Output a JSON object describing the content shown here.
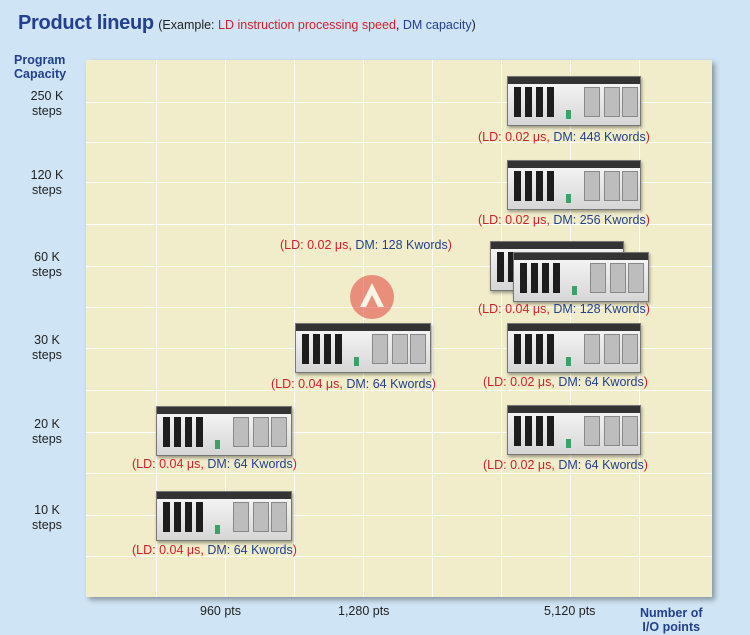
{
  "title": "Product lineup",
  "subtitle": {
    "prefix": "(Example: ",
    "ld": "LD instruction processing speed",
    "sep": ", ",
    "dm": "DM capacity",
    "suffix": ")"
  },
  "y_axis": {
    "title_line1": "Program",
    "title_line2": "Capacity",
    "levels": [
      {
        "value": "250 K",
        "unit": "steps"
      },
      {
        "value": "120 K",
        "unit": "steps"
      },
      {
        "value": "60 K",
        "unit": "steps"
      },
      {
        "value": "30 K",
        "unit": "steps"
      },
      {
        "value": "20 K",
        "unit": "steps"
      },
      {
        "value": "10 K",
        "unit": "steps"
      }
    ]
  },
  "x_axis": {
    "title_line1": "Number of",
    "title_line2": "I/O points",
    "ticks": [
      "960 pts",
      "1,280 pts",
      "5,120 pts"
    ]
  },
  "products": [
    {
      "ld": "LD: 0.02 μs",
      "dm": "DM: 448 Kwords"
    },
    {
      "ld": "LD: 0.02 μs",
      "dm": "DM: 256 Kwords"
    },
    {
      "ld": "LD: 0.02 μs",
      "dm": "DM: 128 Kwords"
    },
    {
      "ld": "LD: 0.04 μs",
      "dm": "DM: 128 Kwords"
    },
    {
      "ld": "LD: 0.04 μs",
      "dm": "DM: 64 Kwords"
    },
    {
      "ld": "LD: 0.02 μs",
      "dm": "DM: 64 Kwords"
    },
    {
      "ld": "LD: 0.04 μs",
      "dm": "DM: 64 Kwords"
    },
    {
      "ld": "LD: 0.02 μs",
      "dm": "DM: 64 Kwords"
    },
    {
      "ld": "LD: 0.04 μs",
      "dm": "DM: 64 Kwords"
    }
  ],
  "colors": {
    "title": "#23408e",
    "ld_text": "#d0202a",
    "dm_text": "#23408e",
    "grid_bg": "#f1ecca",
    "page_bg": "#cfe4f4"
  }
}
